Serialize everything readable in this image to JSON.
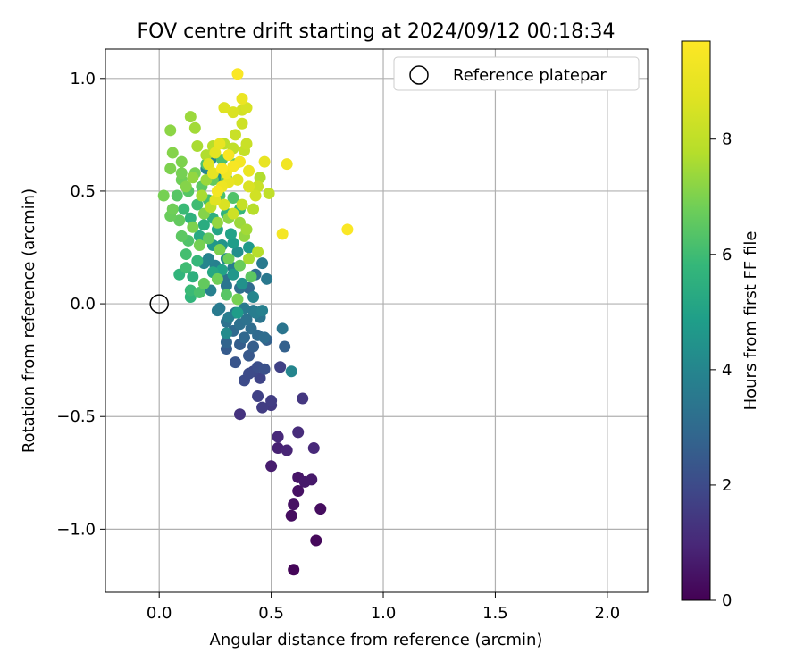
{
  "chart_data": {
    "type": "scatter",
    "title": "FOV centre drift starting at 2024/09/12 00:18:34",
    "xlabel": "Angular distance from reference (arcmin)",
    "ylabel": "Rotation from reference (arcmin)",
    "xlim": [
      -0.24,
      2.18
    ],
    "ylim": [
      -1.28,
      1.13
    ],
    "xticks": [
      0.0,
      0.5,
      1.0,
      1.5,
      2.0
    ],
    "xtick_labels": [
      "0.0",
      "0.5",
      "1.0",
      "1.5",
      "2.0"
    ],
    "yticks": [
      1.0,
      0.5,
      0.0,
      -0.5,
      -1.0
    ],
    "ytick_labels": [
      "1.0",
      "0.5",
      "0.0",
      "−0.5",
      "−1.0"
    ],
    "grid": true,
    "legend": {
      "position": "top-right",
      "entries": [
        "Reference platepar"
      ]
    },
    "reference_point": {
      "x": 0.0,
      "y": 0.0
    },
    "colorbar": {
      "label": "Hours from first FF file",
      "colormap": "viridis",
      "range": [
        0,
        9.7
      ],
      "ticks": [
        0,
        2,
        4,
        6,
        8
      ],
      "tick_labels": [
        "0",
        "2",
        "4",
        "6",
        "8"
      ]
    },
    "points": [
      [
        0.6,
        -1.18,
        0.1
      ],
      [
        0.7,
        -1.05,
        0.2
      ],
      [
        0.72,
        -0.91,
        0.3
      ],
      [
        0.59,
        -0.94,
        0.3
      ],
      [
        0.6,
        -0.89,
        0.4
      ],
      [
        0.62,
        -0.83,
        0.4
      ],
      [
        0.62,
        -0.77,
        0.5
      ],
      [
        0.65,
        -0.79,
        0.6
      ],
      [
        0.68,
        -0.78,
        0.6
      ],
      [
        0.5,
        -0.72,
        0.7
      ],
      [
        0.53,
        -0.64,
        0.8
      ],
      [
        0.57,
        -0.65,
        0.9
      ],
      [
        0.69,
        -0.64,
        1.0
      ],
      [
        0.53,
        -0.59,
        1.0
      ],
      [
        0.62,
        -0.57,
        1.1
      ],
      [
        0.36,
        -0.49,
        1.3
      ],
      [
        0.64,
        -0.42,
        1.4
      ],
      [
        0.5,
        -0.45,
        1.5
      ],
      [
        0.46,
        -0.46,
        1.6
      ],
      [
        0.5,
        -0.43,
        1.6
      ],
      [
        0.44,
        -0.41,
        1.7
      ],
      [
        0.54,
        -0.28,
        1.7
      ],
      [
        0.45,
        -0.33,
        1.8
      ],
      [
        0.42,
        -0.3,
        1.9
      ],
      [
        0.38,
        -0.34,
        2.0
      ],
      [
        0.4,
        -0.31,
        2.0
      ],
      [
        0.44,
        -0.28,
        2.1
      ],
      [
        0.47,
        -0.29,
        2.2
      ],
      [
        0.34,
        -0.26,
        2.3
      ],
      [
        0.4,
        -0.23,
        2.4
      ],
      [
        0.3,
        -0.2,
        2.5
      ],
      [
        0.36,
        -0.18,
        2.6
      ],
      [
        0.42,
        -0.19,
        2.6
      ],
      [
        0.48,
        -0.16,
        2.7
      ],
      [
        0.56,
        -0.19,
        2.7
      ],
      [
        0.3,
        -0.17,
        2.8
      ],
      [
        0.38,
        -0.15,
        2.9
      ],
      [
        0.44,
        -0.14,
        3.0
      ],
      [
        0.33,
        -0.12,
        3.0
      ],
      [
        0.41,
        -0.11,
        3.1
      ],
      [
        0.47,
        -0.15,
        3.1
      ],
      [
        0.36,
        -0.09,
        3.2
      ],
      [
        0.3,
        -0.08,
        3.3
      ],
      [
        0.39,
        -0.07,
        3.3
      ],
      [
        0.45,
        -0.06,
        3.4
      ],
      [
        0.55,
        -0.11,
        3.4
      ],
      [
        0.34,
        -0.04,
        3.5
      ],
      [
        0.42,
        -0.03,
        3.5
      ],
      [
        0.27,
        -0.02,
        3.6
      ],
      [
        0.38,
        -0.02,
        3.6
      ],
      [
        0.43,
        -0.04,
        3.7
      ],
      [
        0.46,
        -0.03,
        3.8
      ],
      [
        0.59,
        -0.3,
        4.0
      ],
      [
        0.3,
        -0.13,
        4.2
      ],
      [
        0.23,
        0.06,
        3.8
      ],
      [
        0.3,
        0.08,
        3.4
      ],
      [
        0.36,
        0.07,
        3.2
      ],
      [
        0.4,
        0.07,
        3.0
      ],
      [
        0.29,
        0.11,
        3.3
      ],
      [
        0.43,
        0.13,
        3.2
      ],
      [
        0.48,
        0.11,
        3.5
      ],
      [
        0.46,
        0.18,
        3.6
      ],
      [
        0.33,
        0.16,
        3.7
      ],
      [
        0.25,
        0.17,
        3.8
      ],
      [
        0.2,
        0.18,
        4.0
      ],
      [
        0.22,
        0.2,
        3.9
      ],
      [
        0.3,
        0.2,
        4.1
      ],
      [
        0.35,
        0.23,
        4.3
      ],
      [
        0.28,
        0.26,
        4.5
      ],
      [
        0.24,
        0.26,
        4.6
      ],
      [
        0.33,
        0.27,
        4.8
      ],
      [
        0.4,
        0.25,
        4.7
      ],
      [
        0.32,
        0.31,
        5.0
      ],
      [
        0.26,
        0.33,
        5.1
      ],
      [
        0.18,
        0.3,
        5.3
      ],
      [
        0.2,
        0.35,
        5.4
      ],
      [
        0.14,
        0.38,
        5.6
      ],
      [
        0.24,
        0.38,
        5.5
      ],
      [
        0.3,
        0.4,
        5.7
      ],
      [
        0.36,
        0.42,
        5.8
      ],
      [
        0.11,
        0.42,
        5.9
      ],
      [
        0.17,
        0.44,
        6.0
      ],
      [
        0.22,
        0.46,
        6.1
      ],
      [
        0.27,
        0.48,
        6.2
      ],
      [
        0.33,
        0.47,
        6.3
      ],
      [
        0.08,
        0.48,
        6.4
      ],
      [
        0.13,
        0.5,
        6.4
      ],
      [
        0.19,
        0.52,
        6.5
      ],
      [
        0.24,
        0.55,
        6.6
      ],
      [
        0.3,
        0.56,
        6.7
      ],
      [
        0.1,
        0.55,
        6.8
      ],
      [
        0.16,
        0.58,
        6.9
      ],
      [
        0.21,
        0.62,
        6.3
      ],
      [
        0.28,
        0.64,
        6.2
      ],
      [
        0.34,
        0.62,
        6.5
      ],
      [
        0.05,
        0.6,
        7.0
      ],
      [
        0.1,
        0.63,
        7.0
      ],
      [
        0.06,
        0.67,
        7.1
      ],
      [
        0.05,
        0.77,
        7.2
      ],
      [
        0.02,
        0.48,
        6.9
      ],
      [
        0.05,
        0.39,
        6.7
      ],
      [
        0.09,
        0.37,
        6.6
      ],
      [
        0.06,
        0.42,
        6.8
      ],
      [
        0.1,
        0.3,
        6.5
      ],
      [
        0.13,
        0.28,
        6.3
      ],
      [
        0.12,
        0.22,
        6.1
      ],
      [
        0.09,
        0.13,
        5.7
      ],
      [
        0.12,
        0.16,
        6.0
      ],
      [
        0.14,
        0.06,
        5.9
      ],
      [
        0.18,
        0.05,
        6.2
      ],
      [
        0.14,
        0.03,
        5.7
      ],
      [
        0.2,
        0.09,
        6.6
      ],
      [
        0.26,
        0.11,
        6.8
      ],
      [
        0.3,
        0.04,
        6.4
      ],
      [
        0.35,
        0.02,
        6.9
      ],
      [
        0.35,
        -0.04,
        4.8
      ],
      [
        0.15,
        0.34,
        7.0
      ],
      [
        0.2,
        0.4,
        7.1
      ],
      [
        0.26,
        0.36,
        7.3
      ],
      [
        0.31,
        0.38,
        7.2
      ],
      [
        0.36,
        0.36,
        7.4
      ],
      [
        0.38,
        0.3,
        7.3
      ],
      [
        0.4,
        0.2,
        7.6
      ],
      [
        0.44,
        0.23,
        7.8
      ],
      [
        0.39,
        0.33,
        7.5
      ],
      [
        0.14,
        0.83,
        7.4
      ],
      [
        0.16,
        0.78,
        7.5
      ],
      [
        0.17,
        0.7,
        7.6
      ],
      [
        0.21,
        0.66,
        7.7
      ],
      [
        0.24,
        0.7,
        7.8
      ],
      [
        0.29,
        0.71,
        7.9
      ],
      [
        0.33,
        0.69,
        8.0
      ],
      [
        0.38,
        0.68,
        8.1
      ],
      [
        0.39,
        0.71,
        8.2
      ],
      [
        0.34,
        0.75,
        8.2
      ],
      [
        0.37,
        0.8,
        8.3
      ],
      [
        0.37,
        0.86,
        8.4
      ],
      [
        0.39,
        0.87,
        8.5
      ],
      [
        0.33,
        0.85,
        8.6
      ],
      [
        0.29,
        0.87,
        8.7
      ],
      [
        0.37,
        0.91,
        9.1
      ],
      [
        0.35,
        1.02,
        9.6
      ],
      [
        0.47,
        0.63,
        9.0
      ],
      [
        0.57,
        0.62,
        9.3
      ],
      [
        0.55,
        0.31,
        9.4
      ],
      [
        0.84,
        0.33,
        9.6
      ],
      [
        0.49,
        0.49,
        8.0
      ],
      [
        0.43,
        0.48,
        8.4
      ],
      [
        0.4,
        0.52,
        8.6
      ],
      [
        0.35,
        0.55,
        8.8
      ],
      [
        0.31,
        0.54,
        9.0
      ],
      [
        0.28,
        0.52,
        9.2
      ],
      [
        0.26,
        0.5,
        9.4
      ],
      [
        0.3,
        0.58,
        9.3
      ],
      [
        0.33,
        0.61,
        9.5
      ],
      [
        0.28,
        0.6,
        9.6
      ],
      [
        0.31,
        0.66,
        9.5
      ],
      [
        0.36,
        0.63,
        9.4
      ],
      [
        0.4,
        0.59,
        9.1
      ],
      [
        0.24,
        0.58,
        8.9
      ],
      [
        0.22,
        0.62,
        8.7
      ],
      [
        0.25,
        0.67,
        8.9
      ],
      [
        0.27,
        0.71,
        9.0
      ],
      [
        0.25,
        0.46,
        8.8
      ],
      [
        0.29,
        0.44,
        8.6
      ],
      [
        0.33,
        0.4,
        8.3
      ],
      [
        0.37,
        0.44,
        8.1
      ],
      [
        0.42,
        0.42,
        7.8
      ],
      [
        0.44,
        0.52,
        8.2
      ],
      [
        0.45,
        0.56,
        7.7
      ],
      [
        0.23,
        0.43,
        7.9
      ],
      [
        0.19,
        0.48,
        7.6
      ],
      [
        0.21,
        0.55,
        7.4
      ],
      [
        0.15,
        0.56,
        7.3
      ],
      [
        0.12,
        0.52,
        7.1
      ],
      [
        0.1,
        0.58,
        6.9
      ],
      [
        0.27,
        0.24,
        7.0
      ],
      [
        0.31,
        0.2,
        6.8
      ],
      [
        0.36,
        0.17,
        6.7
      ],
      [
        0.41,
        0.12,
        6.5
      ],
      [
        0.18,
        0.26,
        6.9
      ],
      [
        0.22,
        0.29,
        6.6
      ],
      [
        0.17,
        0.19,
        5.8
      ],
      [
        0.15,
        0.12,
        5.5
      ],
      [
        0.24,
        0.14,
        5.2
      ],
      [
        0.28,
        0.15,
        5.0
      ],
      [
        0.33,
        0.13,
        4.6
      ],
      [
        0.37,
        0.09,
        4.4
      ],
      [
        0.42,
        0.03,
        4.0
      ],
      [
        0.26,
        -0.03,
        3.6
      ],
      [
        0.31,
        -0.06,
        3.7
      ],
      [
        0.23,
        0.64,
        4.0
      ],
      [
        0.21,
        0.6,
        3.9
      ],
      [
        0.25,
        0.57,
        4.2
      ],
      [
        0.28,
        0.55,
        4.4
      ]
    ]
  }
}
